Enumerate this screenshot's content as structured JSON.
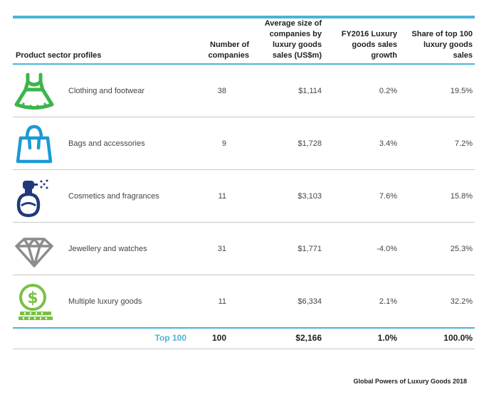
{
  "header": {
    "sector": "Product sector profiles",
    "number": "Number of companies",
    "avg": "Average size of companies by luxury goods sales (US$m)",
    "growth": "FY2016 Luxury goods sales growth",
    "share": "Share of top 100 luxury goods sales"
  },
  "rows": [
    {
      "label": "Clothing and footwear",
      "number": "38",
      "avg": "$1,114",
      "growth": "0.2%",
      "share": "19.5%",
      "icon": "dress-icon",
      "color": "#3cb54a"
    },
    {
      "label": "Bags and accessories",
      "number": "9",
      "avg": "$1,728",
      "growth": "3.4%",
      "share": "7.2%",
      "icon": "handbag-icon",
      "color": "#1a9ad6"
    },
    {
      "label": "Cosmetics and fragrances",
      "number": "11",
      "avg": "$3,103",
      "growth": "7.6%",
      "share": "15.8%",
      "icon": "perfume-bottle-icon",
      "color": "#1f3a7a"
    },
    {
      "label": "Jewellery and watches",
      "number": "31",
      "avg": "$1,771",
      "growth": "-4.0%",
      "share": "25.3%",
      "icon": "diamond-icon",
      "color": "#8c8c8c"
    },
    {
      "label": "Multiple luxury goods",
      "number": "11",
      "avg": "$6,334",
      "growth": "2.1%",
      "share": "32.2%",
      "icon": "dollar-coin-icon",
      "color": "#7ac143"
    }
  ],
  "total": {
    "label": "Top 100",
    "number": "100",
    "avg": "$2,166",
    "growth": "1.0%",
    "share": "100.0%"
  },
  "footer": "Global Powers of Luxury Goods 2018",
  "colors": {
    "accent": "#4db3d6"
  }
}
